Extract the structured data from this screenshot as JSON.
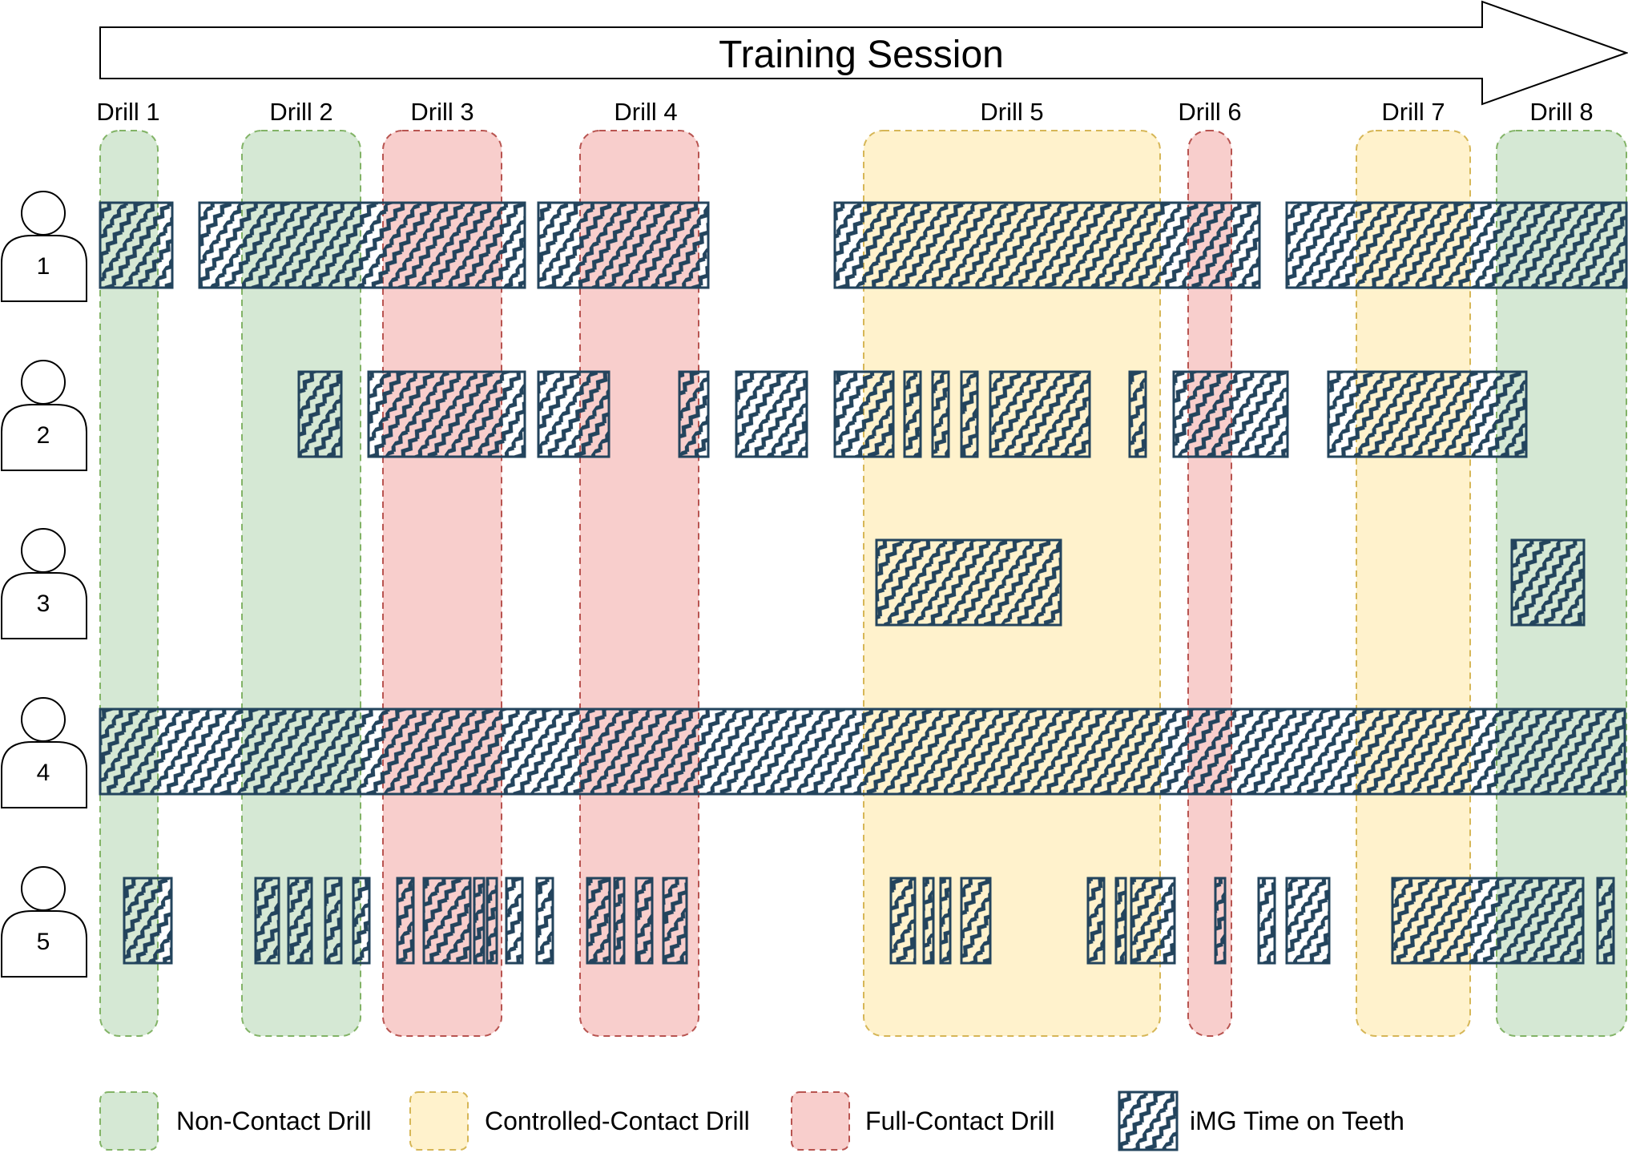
{
  "title": "Training Session",
  "categories": {
    "non_contact": {
      "label": "Non-Contact Drill",
      "fill": "#d5e8d4",
      "stroke": "#82b366"
    },
    "controlled_contact": {
      "label": "Controlled-Contact Drill",
      "fill": "#fff2cc",
      "stroke": "#d6b656"
    },
    "full_contact": {
      "label": "Full-Contact Drill",
      "fill": "#f8cecc",
      "stroke": "#b85450"
    }
  },
  "img_time": {
    "label": "iMG Time on Teeth",
    "color": "#23445d"
  },
  "drills": [
    {
      "label": "Drill 1",
      "type": "non_contact"
    },
    {
      "label": "Drill 2",
      "type": "non_contact"
    },
    {
      "label": "Drill 3",
      "type": "full_contact"
    },
    {
      "label": "Drill 4",
      "type": "full_contact"
    },
    {
      "label": "Drill 5",
      "type": "controlled_contact"
    },
    {
      "label": "Drill 6",
      "type": "full_contact"
    },
    {
      "label": "Drill 7",
      "type": "controlled_contact"
    },
    {
      "label": "Drill 8",
      "type": "non_contact"
    }
  ],
  "players": [
    {
      "number": "1"
    },
    {
      "number": "2"
    },
    {
      "number": "3"
    },
    {
      "number": "4"
    },
    {
      "number": "5"
    }
  ]
}
